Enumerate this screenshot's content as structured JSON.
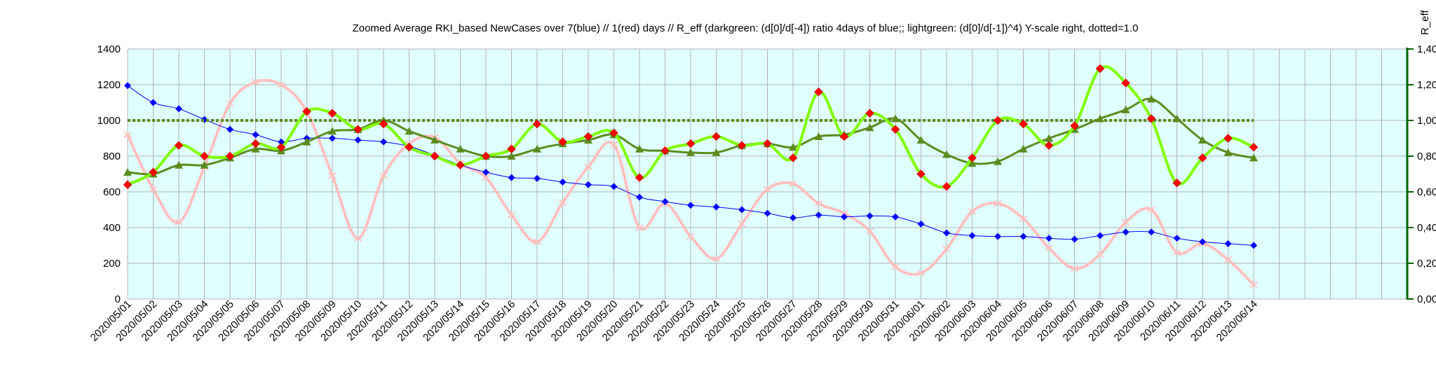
{
  "chart_data": {
    "type": "line",
    "title": "Zoomed Average RKI_based NewCases over 7(blue) // 1(red) days //  R_eff (darkgreen: (d[0]/d[-4]) ratio 4days of blue;; lightgreen: (d[0]/d[-1])^4) Y-scale right, dotted=1.0",
    "ylabel_right": "R_eff",
    "categories": [
      "2020/05/01",
      "2020/05/02",
      "2020/05/03",
      "2020/05/04",
      "2020/05/05",
      "2020/05/06",
      "2020/05/07",
      "2020/05/08",
      "2020/05/09",
      "2020/05/10",
      "2020/05/11",
      "2020/05/12",
      "2020/05/13",
      "2020/05/14",
      "2020/05/15",
      "2020/05/16",
      "2020/05/17",
      "2020/05/18",
      "2020/05/19",
      "2020/05/20",
      "2020/05/21",
      "2020/05/22",
      "2020/05/23",
      "2020/05/24",
      "2020/05/25",
      "2020/05/26",
      "2020/05/27",
      "2020/05/28",
      "2020/05/29",
      "2020/05/30",
      "2020/05/31",
      "2020/06/01",
      "2020/06/02",
      "2020/06/03",
      "2020/06/04",
      "2020/06/05",
      "2020/06/06",
      "2020/06/07",
      "2020/06/08",
      "2020/06/09",
      "2020/06/10",
      "2020/06/11",
      "2020/06/12",
      "2020/06/13",
      "2020/06/14"
    ],
    "extra_empty_slots": 5,
    "y_left": {
      "min": 0,
      "max": 1400,
      "step": 200,
      "ticks": [
        "0",
        "200",
        "400",
        "600",
        "800",
        "1000",
        "1200",
        "1400"
      ]
    },
    "y_right": {
      "min": 0,
      "max": 1.4,
      "step": 0.2,
      "ticks": [
        "0,00",
        "0,20",
        "0,40",
        "0,60",
        "0,80",
        "1,00",
        "1,20",
        "1,40"
      ]
    },
    "grid": true,
    "colors": {
      "plot_bg": "#e0ffff",
      "grid": "#b3b3b3",
      "blue": "#0000ff",
      "red_line": "#ffbfbf",
      "red_marker": "#ff0000",
      "darkgreen": "#5b8c1e",
      "lightgreen": "#80ff00",
      "dotted": "#5b8c1e",
      "right_axis": "#006400"
    },
    "series": [
      {
        "key": "blue",
        "axis": "left",
        "values": [
          1195,
          1100,
          1065,
          1005,
          950,
          920,
          880,
          900,
          900,
          890,
          880,
          855,
          805,
          750,
          710,
          680,
          675,
          655,
          640,
          630,
          570,
          545,
          525,
          515,
          500,
          480,
          455,
          470,
          460,
          465,
          460,
          420,
          370,
          355,
          350,
          350,
          340,
          335,
          355,
          375,
          375,
          340,
          320,
          310,
          300
        ]
      },
      {
        "key": "red",
        "axis": "left",
        "values": [
          920,
          615,
          430,
          740,
          1095,
          1215,
          1200,
          1050,
          690,
          340,
          690,
          870,
          905,
          760,
          680,
          470,
          320,
          540,
          740,
          865,
          400,
          535,
          350,
          225,
          420,
          615,
          645,
          535,
          480,
          380,
          180,
          145,
          280,
          490,
          535,
          450,
          285,
          170,
          250,
          430,
          500,
          260,
          310,
          220,
          80
        ]
      },
      {
        "key": "darkgreen",
        "axis": "right",
        "values": [
          0.71,
          0.7,
          0.75,
          0.75,
          0.79,
          0.84,
          0.83,
          0.88,
          0.94,
          0.95,
          1.0,
          0.94,
          0.89,
          0.84,
          0.8,
          0.8,
          0.84,
          0.87,
          0.89,
          0.92,
          0.84,
          0.83,
          0.82,
          0.82,
          0.86,
          0.87,
          0.85,
          0.91,
          0.92,
          0.96,
          1.01,
          0.89,
          0.81,
          0.76,
          0.77,
          0.84,
          0.9,
          0.95,
          1.01,
          1.06,
          1.12,
          1.01,
          0.89,
          0.82,
          0.79
        ]
      },
      {
        "key": "lightgreen",
        "axis": "right",
        "values": [
          0.64,
          0.71,
          0.86,
          0.8,
          0.8,
          0.87,
          0.85,
          1.05,
          1.04,
          0.95,
          0.98,
          0.85,
          0.8,
          0.75,
          0.8,
          0.84,
          0.98,
          0.88,
          0.91,
          0.93,
          0.68,
          0.83,
          0.87,
          0.91,
          0.86,
          0.87,
          0.79,
          1.16,
          0.91,
          1.04,
          0.95,
          0.7,
          0.63,
          0.79,
          1.0,
          0.98,
          0.86,
          0.97,
          1.29,
          1.21,
          1.01,
          0.65,
          0.79,
          0.9,
          0.85
        ]
      },
      {
        "key": "dotted",
        "axis": "right",
        "values": [
          1,
          1,
          1,
          1,
          1,
          1,
          1,
          1,
          1,
          1,
          1,
          1,
          1,
          1,
          1,
          1,
          1,
          1,
          1,
          1,
          1,
          1,
          1,
          1,
          1,
          1,
          1,
          1,
          1,
          1,
          1,
          1,
          1,
          1,
          1,
          1,
          1,
          1,
          1,
          1,
          1,
          1,
          1,
          1,
          1
        ]
      }
    ]
  }
}
